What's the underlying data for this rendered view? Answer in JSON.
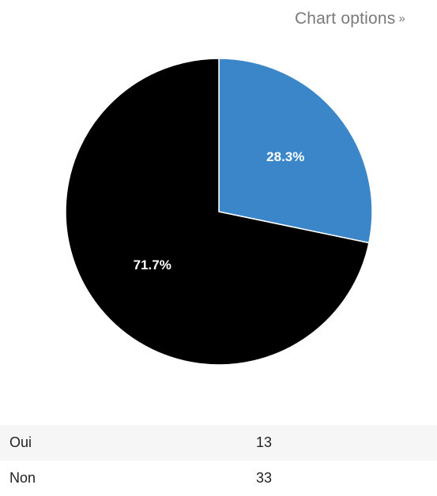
{
  "header": {
    "chart_options_label": "Chart options",
    "chart_options_arrow": "»"
  },
  "colors": {
    "oui": "#3a86c8",
    "non": "#000000",
    "slice_border": "#ffffff"
  },
  "chart_data": {
    "type": "pie",
    "categories": [
      "Oui",
      "Non"
    ],
    "values": [
      13,
      33
    ],
    "percent_labels": [
      "28.3%",
      "71.7%"
    ],
    "colors": [
      "#3a86c8",
      "#000000"
    ],
    "start_angle": "12 o'clock",
    "direction": "clockwise",
    "legend": "none"
  },
  "table": {
    "rows": [
      {
        "category": "Oui",
        "value": "13"
      },
      {
        "category": "Non",
        "value": "33"
      }
    ]
  }
}
